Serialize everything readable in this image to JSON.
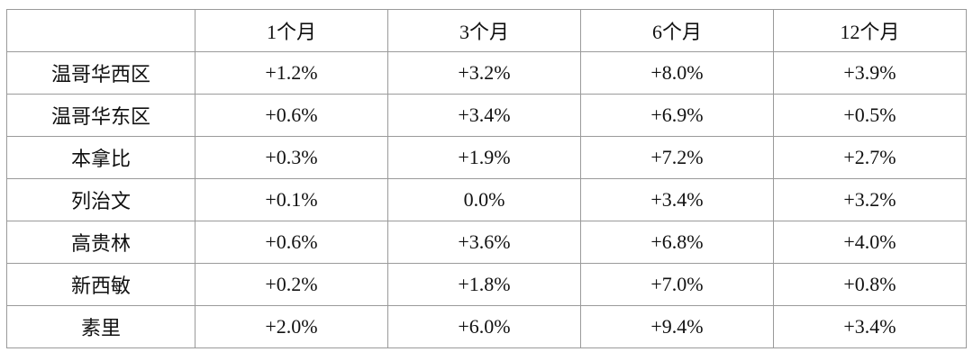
{
  "table": {
    "header": [
      "1个月",
      "3个月",
      "6个月",
      "12个月"
    ],
    "rows": [
      [
        "温哥华西区",
        "+1.2%",
        "+3.2%",
        "+8.0%",
        "+3.9%"
      ],
      [
        "温哥华东区",
        "+0.6%",
        "+3.4%",
        "+6.9%",
        "+0.5%"
      ],
      [
        "本拿比",
        "+0.3%",
        "+1.9%",
        "+7.2%",
        "+2.7%"
      ],
      [
        "列治文",
        "+0.1%",
        "0.0%",
        "+3.4%",
        "+3.2%"
      ],
      [
        "高贵林",
        "+0.6%",
        "+3.6%",
        "+6.8%",
        "+4.0%"
      ],
      [
        "新西敏",
        "+0.2%",
        "+1.8%",
        "+7.0%",
        "+0.8%"
      ],
      [
        "素里",
        "+2.0%",
        "+6.0%",
        "+9.4%",
        "+3.4%"
      ]
    ]
  }
}
